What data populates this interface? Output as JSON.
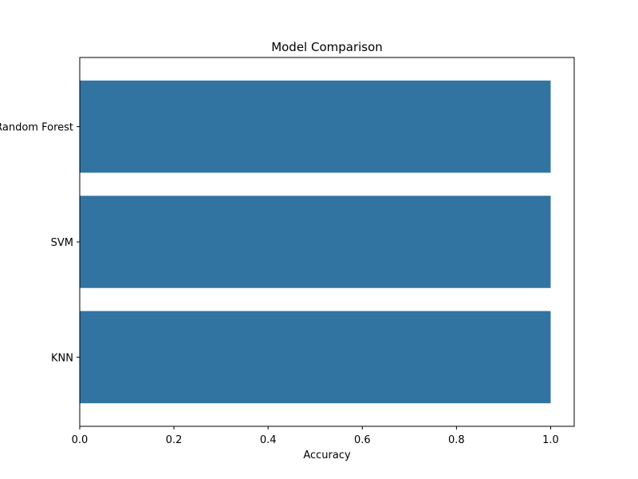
{
  "chart_data": {
    "type": "bar",
    "orientation": "horizontal",
    "title": "Model Comparison",
    "xlabel": "Accuracy",
    "ylabel": "",
    "categories": [
      "Random Forest",
      "SVM",
      "KNN"
    ],
    "values": [
      1.0,
      1.0,
      1.0
    ],
    "xlim": [
      0,
      1.05
    ],
    "xticks": [
      "0.0",
      "0.2",
      "0.4",
      "0.6",
      "0.8",
      "1.0"
    ],
    "grid": false,
    "legend": "none",
    "bar_color": "#3274a1"
  }
}
